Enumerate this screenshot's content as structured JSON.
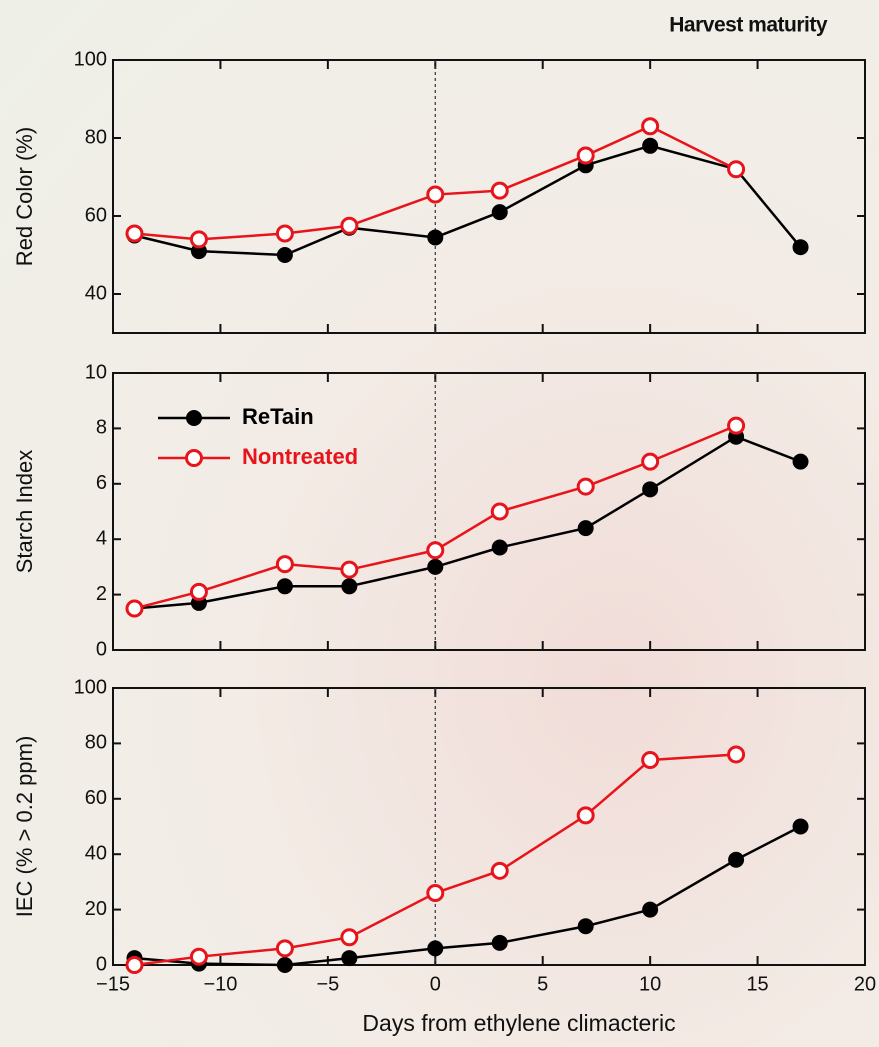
{
  "chart_data": [
    {
      "type": "line",
      "annotation": "Harvest maturity",
      "ylabel": "Red Color (%)",
      "x": [
        -14,
        -11,
        -7,
        -4,
        0,
        3,
        7,
        10,
        14,
        17
      ],
      "series": [
        {
          "color": "#000000",
          "marker_fill": true,
          "values": [
            55,
            51,
            50,
            57,
            54.5,
            61,
            73,
            78,
            72,
            52
          ]
        },
        {
          "color": "#e8141b",
          "marker_fill": false,
          "values": [
            55.5,
            54,
            55.5,
            57.5,
            65.5,
            66.5,
            75.5,
            83,
            72,
            null
          ]
        }
      ],
      "xlim": [
        -15,
        20
      ],
      "ylim": [
        30,
        100
      ],
      "yticks": [
        40,
        60,
        80,
        100
      ],
      "vline": 0
    },
    {
      "type": "line",
      "ylabel": "Starch Index",
      "legend": "upper left",
      "x": [
        -14,
        -11,
        -7,
        -4,
        0,
        3,
        7,
        10,
        14,
        17
      ],
      "series": [
        {
          "name": "ReTain",
          "color": "#000000",
          "marker_fill": true,
          "values": [
            1.5,
            1.7,
            2.3,
            2.3,
            3.0,
            3.7,
            4.4,
            5.8,
            7.7,
            6.8
          ]
        },
        {
          "name": "Nontreated",
          "color": "#e8141b",
          "marker_fill": false,
          "values": [
            1.5,
            2.1,
            3.1,
            2.9,
            3.6,
            5.0,
            5.9,
            6.8,
            8.1,
            null
          ]
        }
      ],
      "xlim": [
        -15,
        20
      ],
      "ylim": [
        0,
        10
      ],
      "yticks": [
        0,
        2,
        4,
        6,
        8,
        10
      ],
      "vline": 0
    },
    {
      "type": "line",
      "ylabel": "IEC (% > 0.2 ppm)",
      "xlabel": "Days from ethylene climacteric",
      "x": [
        -14,
        -11,
        -7,
        -4,
        0,
        3,
        7,
        10,
        14,
        17
      ],
      "series": [
        {
          "color": "#000000",
          "marker_fill": true,
          "values": [
            2.5,
            0.5,
            0,
            2.5,
            6,
            8,
            14,
            20,
            38,
            50
          ]
        },
        {
          "color": "#e8141b",
          "marker_fill": false,
          "values": [
            0,
            3,
            6,
            10,
            26,
            34,
            54,
            74,
            76,
            null
          ]
        }
      ],
      "xlim": [
        -15,
        20
      ],
      "xticks": [
        {
          "value": -15,
          "label": "−15"
        },
        {
          "value": -10,
          "label": "−10"
        },
        {
          "value": -5,
          "label": "−5"
        },
        0,
        5,
        10,
        15,
        20
      ],
      "ylim": [
        0,
        100
      ],
      "yticks": [
        0,
        20,
        40,
        60,
        80,
        100
      ],
      "vline": 0
    }
  ]
}
